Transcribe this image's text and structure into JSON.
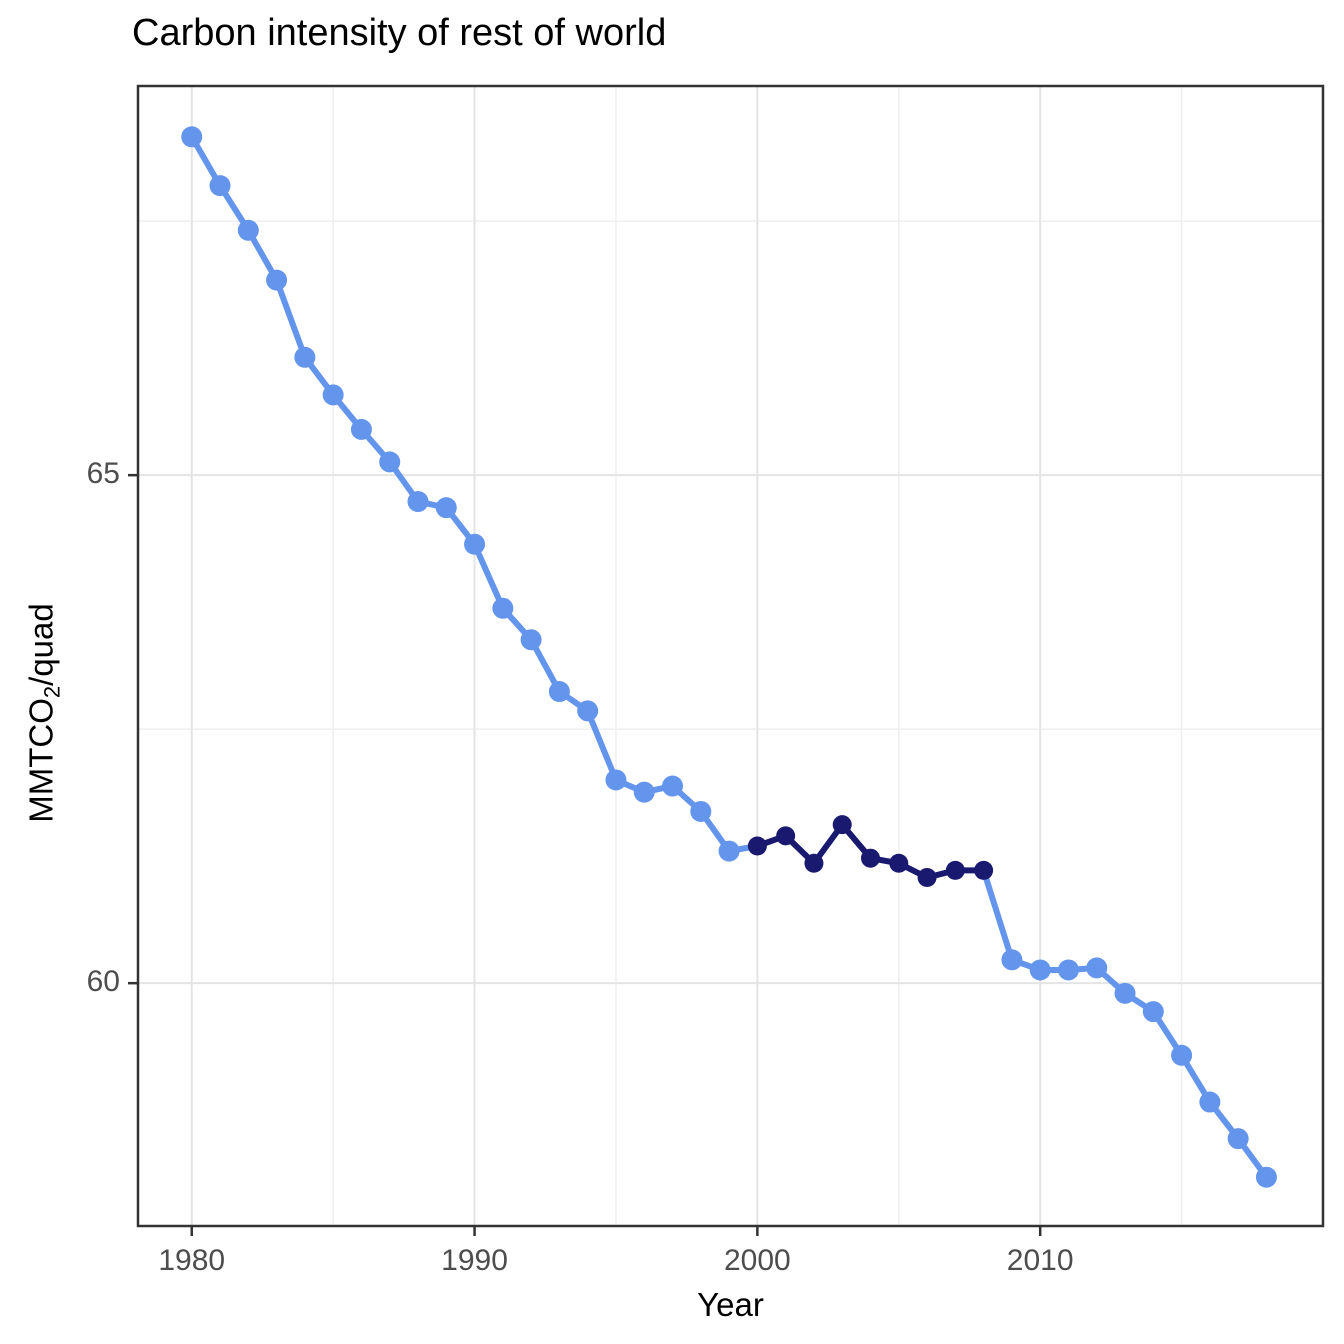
{
  "title": "Carbon intensity of rest of world",
  "colors": {
    "series_light": "#6495ED",
    "series_dark": "#191970",
    "grid_major": "#E4E4E4",
    "grid_minor": "#EFEFEF",
    "panel_border": "#333333",
    "tick_mark": "#333333",
    "tick_label": "#4D4D4D",
    "axis_title": "#000000",
    "background": "#FFFFFF"
  },
  "chart_data": {
    "type": "line",
    "title": "Carbon intensity of rest of world",
    "xlabel": "Year",
    "ylabel": "MMTCO2/quad",
    "ylabel_parts": {
      "base": "MMTCO",
      "sub": "2",
      "rest": "/quad"
    },
    "x": [
      1980,
      1981,
      1982,
      1983,
      1984,
      1985,
      1986,
      1987,
      1988,
      1989,
      1990,
      1991,
      1992,
      1993,
      1994,
      1995,
      1996,
      1997,
      1998,
      1999,
      2000,
      2001,
      2002,
      2003,
      2004,
      2005,
      2006,
      2007,
      2008,
      2009,
      2010,
      2011,
      2012,
      2013,
      2014,
      2015,
      2016,
      2017,
      2018
    ],
    "series": [
      {
        "name": "rest-of-world-carbon-intensity",
        "values": [
          68.33,
          67.85,
          67.41,
          66.92,
          66.16,
          65.79,
          65.45,
          65.13,
          64.74,
          64.68,
          64.32,
          63.69,
          63.38,
          62.87,
          62.68,
          62.0,
          61.88,
          61.94,
          61.69,
          61.3,
          61.35,
          61.45,
          61.18,
          61.56,
          61.23,
          61.18,
          61.04,
          61.11,
          61.11,
          60.23,
          60.13,
          60.13,
          60.15,
          59.9,
          59.72,
          59.29,
          58.83,
          58.47,
          58.09
        ]
      }
    ],
    "highlight_range": {
      "start": 2000,
      "end": 2008
    },
    "x_ticks": [
      1980,
      1990,
      2000,
      2010
    ],
    "y_ticks": [
      60,
      65
    ],
    "x_minor_ticks": [
      1985,
      1995,
      2005,
      2015
    ],
    "y_minor_ticks": [
      62.5,
      67.5
    ],
    "xlim": [
      1978.1,
      2020.0
    ],
    "ylim": [
      57.61,
      68.83
    ],
    "grid": true,
    "legend_position": "none"
  }
}
